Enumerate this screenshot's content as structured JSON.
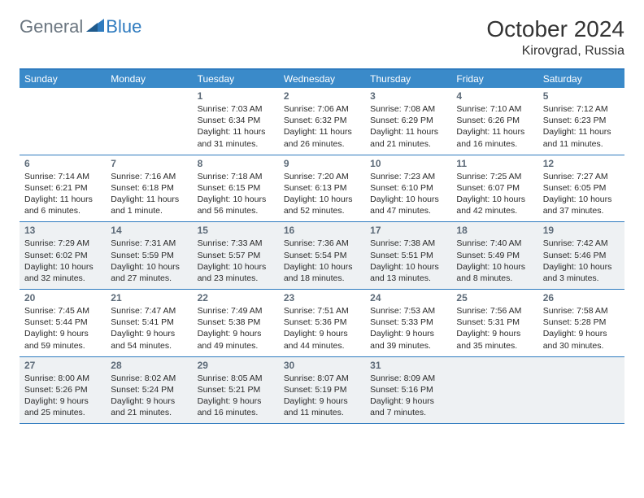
{
  "logo": {
    "text_general": "General",
    "text_blue": "Blue"
  },
  "title": "October 2024",
  "location": "Kirovgrad, Russia",
  "colors": {
    "header_bar": "#3a8ac9",
    "header_border": "#2f7bbf",
    "shade": "#eef1f3",
    "logo_gray": "#6b7680",
    "logo_blue": "#2f7bbf",
    "text": "#2a2a2a",
    "daynum": "#5c6a78"
  },
  "days_of_week": [
    "Sunday",
    "Monday",
    "Tuesday",
    "Wednesday",
    "Thursday",
    "Friday",
    "Saturday"
  ],
  "weeks": [
    {
      "shaded": false,
      "cells": [
        null,
        null,
        {
          "n": "1",
          "sr": "Sunrise: 7:03 AM",
          "ss": "Sunset: 6:34 PM",
          "d1": "Daylight: 11 hours",
          "d2": "and 31 minutes."
        },
        {
          "n": "2",
          "sr": "Sunrise: 7:06 AM",
          "ss": "Sunset: 6:32 PM",
          "d1": "Daylight: 11 hours",
          "d2": "and 26 minutes."
        },
        {
          "n": "3",
          "sr": "Sunrise: 7:08 AM",
          "ss": "Sunset: 6:29 PM",
          "d1": "Daylight: 11 hours",
          "d2": "and 21 minutes."
        },
        {
          "n": "4",
          "sr": "Sunrise: 7:10 AM",
          "ss": "Sunset: 6:26 PM",
          "d1": "Daylight: 11 hours",
          "d2": "and 16 minutes."
        },
        {
          "n": "5",
          "sr": "Sunrise: 7:12 AM",
          "ss": "Sunset: 6:23 PM",
          "d1": "Daylight: 11 hours",
          "d2": "and 11 minutes."
        }
      ]
    },
    {
      "shaded": false,
      "cells": [
        {
          "n": "6",
          "sr": "Sunrise: 7:14 AM",
          "ss": "Sunset: 6:21 PM",
          "d1": "Daylight: 11 hours",
          "d2": "and 6 minutes."
        },
        {
          "n": "7",
          "sr": "Sunrise: 7:16 AM",
          "ss": "Sunset: 6:18 PM",
          "d1": "Daylight: 11 hours",
          "d2": "and 1 minute."
        },
        {
          "n": "8",
          "sr": "Sunrise: 7:18 AM",
          "ss": "Sunset: 6:15 PM",
          "d1": "Daylight: 10 hours",
          "d2": "and 56 minutes."
        },
        {
          "n": "9",
          "sr": "Sunrise: 7:20 AM",
          "ss": "Sunset: 6:13 PM",
          "d1": "Daylight: 10 hours",
          "d2": "and 52 minutes."
        },
        {
          "n": "10",
          "sr": "Sunrise: 7:23 AM",
          "ss": "Sunset: 6:10 PM",
          "d1": "Daylight: 10 hours",
          "d2": "and 47 minutes."
        },
        {
          "n": "11",
          "sr": "Sunrise: 7:25 AM",
          "ss": "Sunset: 6:07 PM",
          "d1": "Daylight: 10 hours",
          "d2": "and 42 minutes."
        },
        {
          "n": "12",
          "sr": "Sunrise: 7:27 AM",
          "ss": "Sunset: 6:05 PM",
          "d1": "Daylight: 10 hours",
          "d2": "and 37 minutes."
        }
      ]
    },
    {
      "shaded": true,
      "cells": [
        {
          "n": "13",
          "sr": "Sunrise: 7:29 AM",
          "ss": "Sunset: 6:02 PM",
          "d1": "Daylight: 10 hours",
          "d2": "and 32 minutes."
        },
        {
          "n": "14",
          "sr": "Sunrise: 7:31 AM",
          "ss": "Sunset: 5:59 PM",
          "d1": "Daylight: 10 hours",
          "d2": "and 27 minutes."
        },
        {
          "n": "15",
          "sr": "Sunrise: 7:33 AM",
          "ss": "Sunset: 5:57 PM",
          "d1": "Daylight: 10 hours",
          "d2": "and 23 minutes."
        },
        {
          "n": "16",
          "sr": "Sunrise: 7:36 AM",
          "ss": "Sunset: 5:54 PM",
          "d1": "Daylight: 10 hours",
          "d2": "and 18 minutes."
        },
        {
          "n": "17",
          "sr": "Sunrise: 7:38 AM",
          "ss": "Sunset: 5:51 PM",
          "d1": "Daylight: 10 hours",
          "d2": "and 13 minutes."
        },
        {
          "n": "18",
          "sr": "Sunrise: 7:40 AM",
          "ss": "Sunset: 5:49 PM",
          "d1": "Daylight: 10 hours",
          "d2": "and 8 minutes."
        },
        {
          "n": "19",
          "sr": "Sunrise: 7:42 AM",
          "ss": "Sunset: 5:46 PM",
          "d1": "Daylight: 10 hours",
          "d2": "and 3 minutes."
        }
      ]
    },
    {
      "shaded": false,
      "cells": [
        {
          "n": "20",
          "sr": "Sunrise: 7:45 AM",
          "ss": "Sunset: 5:44 PM",
          "d1": "Daylight: 9 hours",
          "d2": "and 59 minutes."
        },
        {
          "n": "21",
          "sr": "Sunrise: 7:47 AM",
          "ss": "Sunset: 5:41 PM",
          "d1": "Daylight: 9 hours",
          "d2": "and 54 minutes."
        },
        {
          "n": "22",
          "sr": "Sunrise: 7:49 AM",
          "ss": "Sunset: 5:38 PM",
          "d1": "Daylight: 9 hours",
          "d2": "and 49 minutes."
        },
        {
          "n": "23",
          "sr": "Sunrise: 7:51 AM",
          "ss": "Sunset: 5:36 PM",
          "d1": "Daylight: 9 hours",
          "d2": "and 44 minutes."
        },
        {
          "n": "24",
          "sr": "Sunrise: 7:53 AM",
          "ss": "Sunset: 5:33 PM",
          "d1": "Daylight: 9 hours",
          "d2": "and 39 minutes."
        },
        {
          "n": "25",
          "sr": "Sunrise: 7:56 AM",
          "ss": "Sunset: 5:31 PM",
          "d1": "Daylight: 9 hours",
          "d2": "and 35 minutes."
        },
        {
          "n": "26",
          "sr": "Sunrise: 7:58 AM",
          "ss": "Sunset: 5:28 PM",
          "d1": "Daylight: 9 hours",
          "d2": "and 30 minutes."
        }
      ]
    },
    {
      "shaded": true,
      "cells": [
        {
          "n": "27",
          "sr": "Sunrise: 8:00 AM",
          "ss": "Sunset: 5:26 PM",
          "d1": "Daylight: 9 hours",
          "d2": "and 25 minutes."
        },
        {
          "n": "28",
          "sr": "Sunrise: 8:02 AM",
          "ss": "Sunset: 5:24 PM",
          "d1": "Daylight: 9 hours",
          "d2": "and 21 minutes."
        },
        {
          "n": "29",
          "sr": "Sunrise: 8:05 AM",
          "ss": "Sunset: 5:21 PM",
          "d1": "Daylight: 9 hours",
          "d2": "and 16 minutes."
        },
        {
          "n": "30",
          "sr": "Sunrise: 8:07 AM",
          "ss": "Sunset: 5:19 PM",
          "d1": "Daylight: 9 hours",
          "d2": "and 11 minutes."
        },
        {
          "n": "31",
          "sr": "Sunrise: 8:09 AM",
          "ss": "Sunset: 5:16 PM",
          "d1": "Daylight: 9 hours",
          "d2": "and 7 minutes."
        },
        null,
        null
      ]
    }
  ]
}
